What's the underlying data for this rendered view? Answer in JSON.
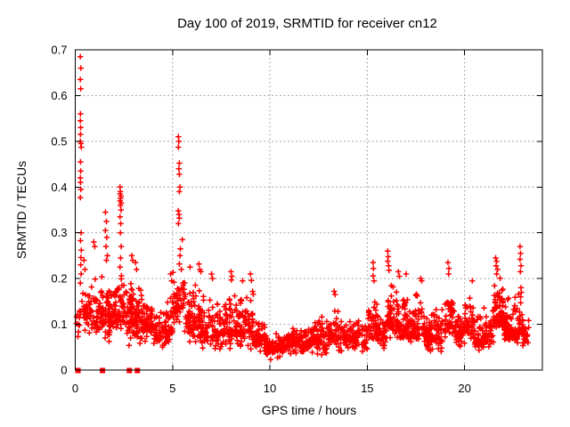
{
  "chart_data": {
    "type": "scatter",
    "title": "Day 100 of 2019, SRMTID for receiver cn12",
    "xlabel": "GPS time / hours",
    "ylabel": "SRMTID / TECUs",
    "xlim": [
      0,
      24
    ],
    "ylim": [
      0,
      0.7
    ],
    "x_ticks": [
      0,
      5,
      10,
      15,
      20
    ],
    "x_tick_labels": [
      "0",
      "5",
      "10",
      "15",
      "20"
    ],
    "y_ticks": [
      0,
      0.1,
      0.2,
      0.3,
      0.4,
      0.5,
      0.6,
      0.7
    ],
    "y_tick_labels": [
      "0",
      "0.1",
      "0.2",
      "0.3",
      "0.4",
      "0.5",
      "0.6",
      "0.7"
    ],
    "grid": {
      "show": true,
      "style": "dashed",
      "at": "major-ticks",
      "color": "#a8a8a8"
    },
    "legend": "none",
    "background": "#ffffff",
    "axis_color": "#000000",
    "series": [
      {
        "name": "srmtid-scatter",
        "marker": "plus",
        "color": "#ff0000",
        "sampling": {
          "seed": 123456789,
          "band_bins_format": [
            "x_start",
            "x_end",
            "count",
            "y_min",
            "y_max",
            "y_peak"
          ]
        },
        "band_bins": [
          [
            0.05,
            0.35,
            12,
            0.05,
            0.18,
            0.11
          ],
          [
            0.35,
            1.0,
            45,
            0.07,
            0.2,
            0.13
          ],
          [
            1.0,
            1.5,
            50,
            0.06,
            0.22,
            0.13
          ],
          [
            1.5,
            2.0,
            55,
            0.05,
            0.21,
            0.12
          ],
          [
            2.0,
            2.5,
            55,
            0.06,
            0.22,
            0.13
          ],
          [
            2.5,
            3.0,
            55,
            0.05,
            0.21,
            0.12
          ],
          [
            3.0,
            3.5,
            55,
            0.04,
            0.2,
            0.11
          ],
          [
            3.5,
            4.0,
            50,
            0.04,
            0.18,
            0.1
          ],
          [
            4.0,
            4.5,
            40,
            0.04,
            0.15,
            0.085
          ],
          [
            4.5,
            5.0,
            45,
            0.05,
            0.17,
            0.09
          ],
          [
            5.0,
            5.6,
            55,
            0.08,
            0.25,
            0.14
          ],
          [
            5.6,
            6.2,
            55,
            0.05,
            0.22,
            0.11
          ],
          [
            6.2,
            6.6,
            40,
            0.04,
            0.21,
            0.1
          ],
          [
            6.6,
            7.6,
            80,
            0.03,
            0.17,
            0.085
          ],
          [
            7.6,
            8.3,
            65,
            0.04,
            0.2,
            0.09
          ],
          [
            8.3,
            9.2,
            80,
            0.03,
            0.19,
            0.09
          ],
          [
            9.2,
            9.8,
            55,
            0.03,
            0.13,
            0.07
          ],
          [
            9.8,
            10.8,
            85,
            0.02,
            0.09,
            0.05
          ],
          [
            10.8,
            12.0,
            100,
            0.03,
            0.11,
            0.06
          ],
          [
            12.0,
            13.0,
            85,
            0.03,
            0.12,
            0.065
          ],
          [
            13.0,
            13.5,
            45,
            0.04,
            0.16,
            0.08
          ],
          [
            13.5,
            15.0,
            110,
            0.03,
            0.13,
            0.068
          ],
          [
            15.0,
            15.5,
            45,
            0.05,
            0.19,
            0.09
          ],
          [
            15.5,
            16.0,
            45,
            0.04,
            0.15,
            0.085
          ],
          [
            16.0,
            16.5,
            50,
            0.06,
            0.22,
            0.11
          ],
          [
            16.5,
            17.0,
            50,
            0.05,
            0.21,
            0.1
          ],
          [
            17.0,
            18.0,
            85,
            0.05,
            0.19,
            0.095
          ],
          [
            18.0,
            19.0,
            85,
            0.03,
            0.15,
            0.075
          ],
          [
            19.0,
            19.5,
            45,
            0.06,
            0.22,
            0.1
          ],
          [
            19.5,
            20.0,
            45,
            0.04,
            0.15,
            0.08
          ],
          [
            20.0,
            20.5,
            45,
            0.05,
            0.19,
            0.095
          ],
          [
            20.5,
            21.0,
            45,
            0.03,
            0.14,
            0.07
          ],
          [
            21.0,
            21.5,
            45,
            0.04,
            0.15,
            0.08
          ],
          [
            21.5,
            22.0,
            70,
            0.07,
            0.24,
            0.12
          ],
          [
            22.0,
            22.5,
            60,
            0.05,
            0.2,
            0.095
          ],
          [
            22.5,
            23.0,
            50,
            0.04,
            0.21,
            0.09
          ],
          [
            23.0,
            23.3,
            25,
            0.05,
            0.12,
            0.08
          ]
        ],
        "peak_points": [
          [
            0.26,
            0.685
          ],
          [
            0.29,
            0.66
          ],
          [
            0.26,
            0.635
          ],
          [
            0.28,
            0.615
          ],
          [
            0.27,
            0.56
          ],
          [
            0.26,
            0.545
          ],
          [
            0.28,
            0.53
          ],
          [
            0.27,
            0.515
          ],
          [
            0.26,
            0.5
          ],
          [
            0.29,
            0.495
          ],
          [
            0.31,
            0.487
          ],
          [
            0.27,
            0.455
          ],
          [
            0.28,
            0.435
          ],
          [
            0.26,
            0.42
          ],
          [
            0.27,
            0.41
          ],
          [
            0.29,
            0.395
          ],
          [
            0.26,
            0.377
          ],
          [
            0.3,
            0.3
          ],
          [
            0.27,
            0.283
          ],
          [
            0.31,
            0.262
          ],
          [
            0.29,
            0.246
          ],
          [
            0.28,
            0.23
          ],
          [
            0.3,
            0.21
          ],
          [
            0.26,
            0.19
          ],
          [
            0.45,
            0.24
          ],
          [
            0.5,
            0.22
          ],
          [
            0.95,
            0.28
          ],
          [
            1.0,
            0.27
          ],
          [
            1.55,
            0.345
          ],
          [
            1.6,
            0.325
          ],
          [
            1.55,
            0.305
          ],
          [
            1.62,
            0.29
          ],
          [
            1.58,
            0.27
          ],
          [
            1.65,
            0.25
          ],
          [
            1.6,
            0.24
          ],
          [
            2.3,
            0.4
          ],
          [
            2.32,
            0.39
          ],
          [
            2.3,
            0.385
          ],
          [
            2.35,
            0.38
          ],
          [
            2.33,
            0.375
          ],
          [
            2.3,
            0.37
          ],
          [
            2.36,
            0.365
          ],
          [
            2.32,
            0.36
          ],
          [
            2.35,
            0.35
          ],
          [
            2.3,
            0.335
          ],
          [
            2.34,
            0.32
          ],
          [
            2.32,
            0.3
          ],
          [
            2.36,
            0.27
          ],
          [
            2.33,
            0.245
          ],
          [
            2.3,
            0.225
          ],
          [
            2.9,
            0.25
          ],
          [
            2.95,
            0.24
          ],
          [
            3.1,
            0.235
          ],
          [
            3.15,
            0.22
          ],
          [
            4.9,
            0.21
          ],
          [
            4.95,
            0.195
          ],
          [
            5.3,
            0.51
          ],
          [
            5.32,
            0.5
          ],
          [
            5.3,
            0.487
          ],
          [
            5.35,
            0.452
          ],
          [
            5.32,
            0.44
          ],
          [
            5.35,
            0.428
          ],
          [
            5.38,
            0.4
          ],
          [
            5.35,
            0.39
          ],
          [
            5.3,
            0.348
          ],
          [
            5.33,
            0.34
          ],
          [
            5.35,
            0.332
          ],
          [
            5.3,
            0.32
          ],
          [
            5.4,
            0.265
          ],
          [
            5.38,
            0.25
          ],
          [
            5.35,
            0.232
          ],
          [
            5.45,
            0.22
          ],
          [
            5.5,
            0.285
          ],
          [
            5.9,
            0.225
          ],
          [
            6.35,
            0.232
          ],
          [
            6.4,
            0.22
          ],
          [
            6.45,
            0.215
          ],
          [
            7.0,
            0.21
          ],
          [
            7.05,
            0.2
          ],
          [
            8.0,
            0.215
          ],
          [
            8.05,
            0.205
          ],
          [
            8.02,
            0.197
          ],
          [
            8.6,
            0.195
          ],
          [
            9.0,
            0.21
          ],
          [
            9.05,
            0.196
          ],
          [
            13.3,
            0.172
          ],
          [
            13.35,
            0.165
          ],
          [
            15.3,
            0.235
          ],
          [
            15.32,
            0.222
          ],
          [
            15.3,
            0.206
          ],
          [
            15.35,
            0.195
          ],
          [
            16.05,
            0.26
          ],
          [
            16.08,
            0.248
          ],
          [
            16.05,
            0.238
          ],
          [
            16.1,
            0.228
          ],
          [
            16.12,
            0.218
          ],
          [
            16.6,
            0.215
          ],
          [
            16.65,
            0.205
          ],
          [
            17.0,
            0.21
          ],
          [
            17.75,
            0.2
          ],
          [
            17.8,
            0.195
          ],
          [
            19.15,
            0.235
          ],
          [
            19.2,
            0.222
          ],
          [
            19.18,
            0.21
          ],
          [
            20.4,
            0.195
          ],
          [
            21.6,
            0.245
          ],
          [
            21.65,
            0.238
          ],
          [
            21.62,
            0.228
          ],
          [
            21.7,
            0.22
          ],
          [
            22.85,
            0.27
          ],
          [
            22.88,
            0.255
          ],
          [
            22.85,
            0.242
          ],
          [
            22.9,
            0.228
          ],
          [
            22.87,
            0.215
          ],
          [
            22.9,
            0.18
          ],
          [
            22.92,
            0.17
          ],
          [
            22.88,
            0.16
          ]
        ]
      },
      {
        "name": "zero-flags",
        "marker": "filled-square",
        "color": "#ff0000",
        "points": [
          [
            0.14,
            0
          ],
          [
            1.4,
            0
          ],
          [
            2.78,
            0
          ],
          [
            3.19,
            0
          ]
        ]
      }
    ]
  }
}
